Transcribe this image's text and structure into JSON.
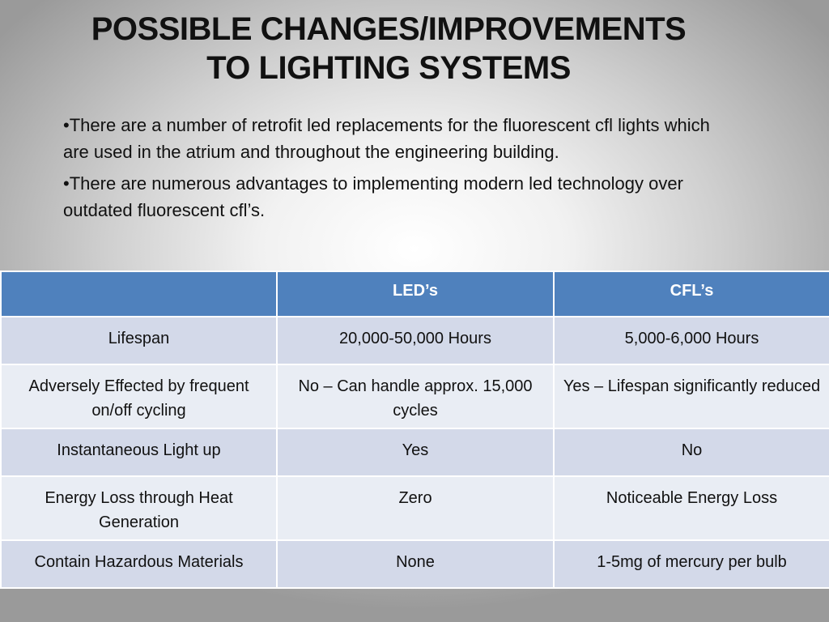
{
  "slide": {
    "title_line1": "POSSIBLE CHANGES/IMPROVEMENTS",
    "title_line2": "TO LIGHTING SYSTEMS",
    "bullets": [
      "•There are a number of retrofit led replacements for the fluorescent cfl lights which are used in the atrium and throughout the engineering building.",
      "•There are numerous advantages to implementing modern led technology over outdated fluorescent cfl’s."
    ]
  },
  "table": {
    "headers": [
      "",
      "LED’s",
      "CFL’s"
    ],
    "rows": [
      [
        "Lifespan",
        "20,000-50,000 Hours",
        "5,000-6,000 Hours"
      ],
      [
        "Adversely Effected by frequent on/off cycling",
        "No – Can handle approx. 15,000 cycles",
        "Yes – Lifespan significantly reduced"
      ],
      [
        "Instantaneous Light up",
        "Yes",
        "No"
      ],
      [
        "Energy Loss through Heat Generation",
        "Zero",
        "Noticeable Energy Loss"
      ],
      [
        "Contain Hazardous Materials",
        "None",
        "1-5mg of mercury per bulb"
      ]
    ]
  },
  "colors": {
    "header_blue": "#4f81bd",
    "row_band": "#d3d9e9",
    "row_band_alt": "#e9edf4"
  }
}
